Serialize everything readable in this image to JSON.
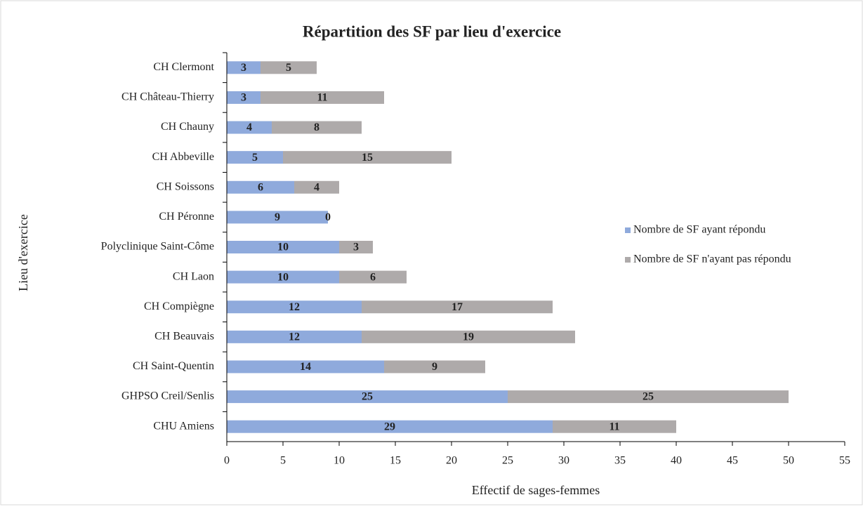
{
  "chart_data": {
    "type": "bar",
    "orientation": "horizontal",
    "stacked": true,
    "title": "Répartition des SF par lieu d'exercice",
    "x_label": "Effectif de sages-femmes",
    "y_label": "Lieu d'exercice",
    "categories": [
      "CH Clermont",
      "CH Château-Thierry",
      "CH Chauny",
      "CH Abbeville",
      "CH Soissons",
      "CH Péronne",
      "Polyclinique Saint-Côme",
      "CH Laon",
      "CH Compiègne",
      "CH Beauvais",
      "CH Saint-Quentin",
      "GHPSO Creil/Senlis",
      "CHU Amiens"
    ],
    "series": [
      {
        "name": "Nombre de SF ayant répondu",
        "color": "#8faadc",
        "values": [
          3,
          3,
          4,
          5,
          6,
          9,
          10,
          10,
          12,
          12,
          14,
          25,
          29
        ]
      },
      {
        "name": "Nombre de SF n'ayant pas répondu",
        "color": "#aeaaaa",
        "values": [
          5,
          11,
          8,
          15,
          4,
          0,
          3,
          6,
          17,
          19,
          9,
          25,
          11
        ]
      }
    ],
    "xlim": [
      0,
      55
    ],
    "xticks": [
      0,
      5,
      10,
      15,
      20,
      25,
      30,
      35,
      40,
      45,
      50,
      55
    ],
    "legend": "right",
    "grid": false
  }
}
